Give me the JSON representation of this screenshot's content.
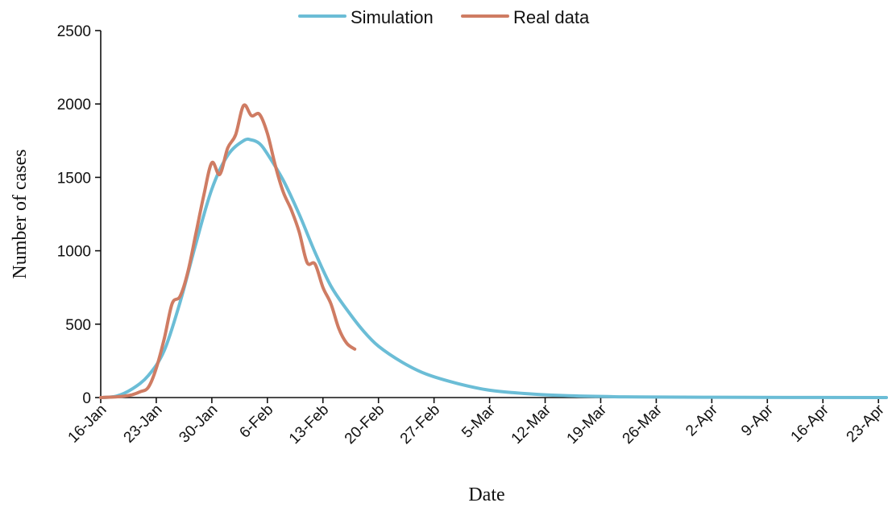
{
  "chart_data": {
    "type": "line",
    "xlabel": "Date",
    "ylabel": "Number of cases",
    "ylim": [
      0,
      2500
    ],
    "yticks": [
      0,
      500,
      1000,
      1500,
      2000,
      2500
    ],
    "xticks": [
      "16-Jan",
      "23-Jan",
      "30-Jan",
      "6-Feb",
      "13-Feb",
      "20-Feb",
      "27-Feb",
      "5-Mar",
      "12-Mar",
      "19-Mar",
      "26-Mar",
      "2-Apr",
      "9-Apr",
      "16-Apr",
      "23-Apr"
    ],
    "xlim": [
      "2020-01-16",
      "2020-04-24"
    ],
    "grid": false,
    "legend": "top-center",
    "series": [
      {
        "name": "Simulation",
        "color": "#6bbdd6",
        "points": [
          [
            "2020-01-16",
            0
          ],
          [
            "2020-01-18",
            10
          ],
          [
            "2020-01-20",
            60
          ],
          [
            "2020-01-22",
            150
          ],
          [
            "2020-01-24",
            320
          ],
          [
            "2020-01-26",
            650
          ],
          [
            "2020-01-28",
            1050
          ],
          [
            "2020-01-30",
            1420
          ],
          [
            "2020-02-01",
            1650
          ],
          [
            "2020-02-03",
            1750
          ],
          [
            "2020-02-04",
            1755
          ],
          [
            "2020-02-05",
            1730
          ],
          [
            "2020-02-06",
            1660
          ],
          [
            "2020-02-08",
            1480
          ],
          [
            "2020-02-10",
            1250
          ],
          [
            "2020-02-12",
            990
          ],
          [
            "2020-02-14",
            760
          ],
          [
            "2020-02-16",
            600
          ],
          [
            "2020-02-18",
            460
          ],
          [
            "2020-02-20",
            350
          ],
          [
            "2020-02-23",
            240
          ],
          [
            "2020-02-26",
            160
          ],
          [
            "2020-03-01",
            95
          ],
          [
            "2020-03-05",
            50
          ],
          [
            "2020-03-10",
            25
          ],
          [
            "2020-03-15",
            12
          ],
          [
            "2020-03-22",
            5
          ],
          [
            "2020-04-01",
            2
          ],
          [
            "2020-04-24",
            0
          ]
        ]
      },
      {
        "name": "Real data",
        "color": "#cf7c63",
        "points": [
          [
            "2020-01-16",
            0
          ],
          [
            "2020-01-18",
            5
          ],
          [
            "2020-01-19",
            10
          ],
          [
            "2020-01-20",
            20
          ],
          [
            "2020-01-21",
            40
          ],
          [
            "2020-01-22",
            70
          ],
          [
            "2020-01-23",
            200
          ],
          [
            "2020-01-24",
            400
          ],
          [
            "2020-01-25",
            640
          ],
          [
            "2020-01-26",
            690
          ],
          [
            "2020-01-27",
            860
          ],
          [
            "2020-01-28",
            1120
          ],
          [
            "2020-01-29",
            1380
          ],
          [
            "2020-01-30",
            1600
          ],
          [
            "2020-01-31",
            1520
          ],
          [
            "2020-02-01",
            1700
          ],
          [
            "2020-02-02",
            1790
          ],
          [
            "2020-02-03",
            1990
          ],
          [
            "2020-02-04",
            1920
          ],
          [
            "2020-02-05",
            1930
          ],
          [
            "2020-02-06",
            1800
          ],
          [
            "2020-02-07",
            1580
          ],
          [
            "2020-02-08",
            1400
          ],
          [
            "2020-02-09",
            1280
          ],
          [
            "2020-02-10",
            1130
          ],
          [
            "2020-02-11",
            920
          ],
          [
            "2020-02-12",
            910
          ],
          [
            "2020-02-13",
            750
          ],
          [
            "2020-02-14",
            640
          ],
          [
            "2020-02-15",
            470
          ],
          [
            "2020-02-16",
            370
          ],
          [
            "2020-02-17",
            330
          ]
        ]
      }
    ]
  }
}
